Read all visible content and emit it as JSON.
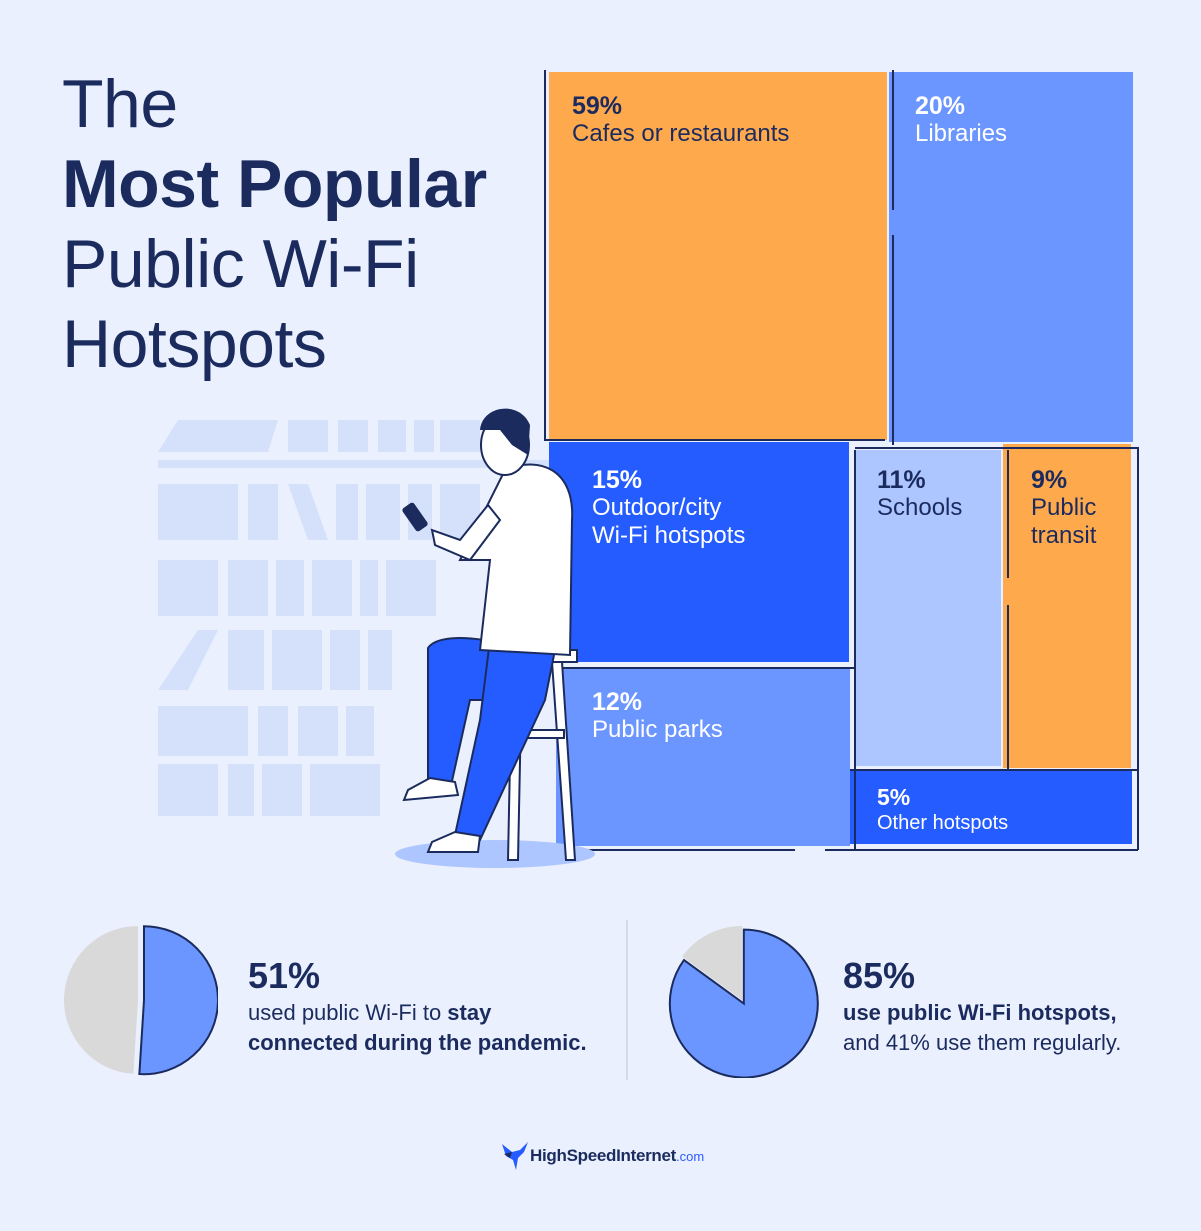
{
  "title": {
    "line1": "The",
    "line2": "Most Popular",
    "line3": "Public Wi-Fi",
    "line4": "Hotspots"
  },
  "chart_data": [
    {
      "type": "treemap",
      "items": [
        {
          "pct": "59%",
          "name": "Cafes or restaurants",
          "value": 59,
          "color": "#ffa94d"
        },
        {
          "pct": "20%",
          "name": "Libraries",
          "value": 20,
          "color": "#6b95ff"
        },
        {
          "pct": "15%",
          "name": "Outdoor/city Wi-Fi hotspots",
          "value": 15,
          "color": "#255cff"
        },
        {
          "pct": "12%",
          "name": "Public parks",
          "value": 12,
          "color": "#6b95ff"
        },
        {
          "pct": "11%",
          "name": "Schools",
          "value": 11,
          "color": "#aec6ff"
        },
        {
          "pct": "9%",
          "name": "Public transit",
          "value": 9,
          "color": "#ffa94d"
        },
        {
          "pct": "5%",
          "name": "Other hotspots",
          "value": 5,
          "color": "#255cff"
        }
      ]
    },
    {
      "type": "pie",
      "values": [
        51,
        49
      ],
      "colors": [
        "#6b95ff",
        "#d9d9d9"
      ]
    },
    {
      "type": "pie",
      "values": [
        85,
        15
      ],
      "colors": [
        "#6b95ff",
        "#d9d9d9"
      ]
    }
  ],
  "labels": {
    "cafes_name": "Cafes or restaurants",
    "outdoor_line1": "Outdoor/city",
    "outdoor_line2": "Wi-Fi hotspots",
    "transit_line1": "Public",
    "transit_line2": "transit"
  },
  "stats": [
    {
      "big": "51%",
      "line1_normal": "used public Wi-Fi to ",
      "line1_bold": "stay",
      "line2_bold": "connected during the pandemic."
    },
    {
      "big": "85%",
      "line1_bold": "use public Wi-Fi hotspots,",
      "line2_normal": "and 41% use them regularly."
    }
  ],
  "logo": {
    "brand": "HighSpeedInternet",
    "suffix": ".com"
  }
}
